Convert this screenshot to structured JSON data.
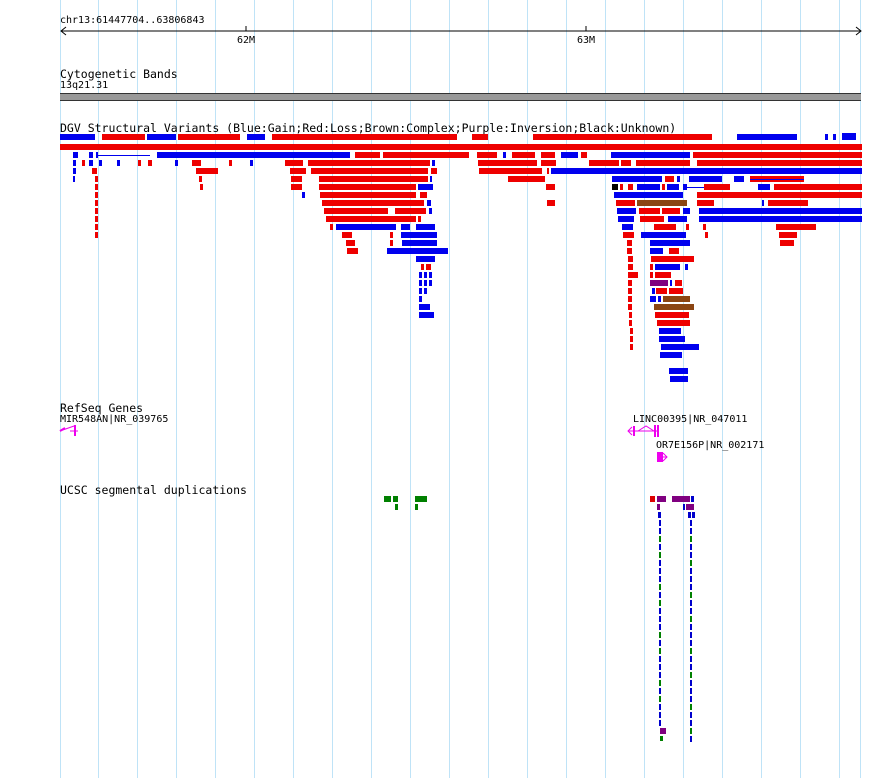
{
  "ruler": {
    "range_label": "chr13:61447704..63806843",
    "ticks": [
      {
        "label": "62M",
        "value": 62000000
      },
      {
        "label": "63M",
        "value": 63000000
      }
    ]
  },
  "tracks": {
    "cytoband": {
      "title": "Cytogenetic Bands",
      "band_label": "13q21.31"
    },
    "dgv": {
      "title": "DGV Structural Variants (Blue:Gain;Red:Loss;Brown:Complex;Purple:Inversion;Black:Unknown)"
    },
    "refseq": {
      "title": "RefSeq Genes",
      "genes": [
        {
          "label": "MIR548AN|NR_039765",
          "strand": "-"
        },
        {
          "label": "LINC00395|NR_047011",
          "strand": "-"
        },
        {
          "label": "OR7E156P|NR_002171",
          "strand": "+"
        }
      ]
    },
    "segdup": {
      "title": "UCSC segmental duplications"
    }
  },
  "colors": {
    "gain": "#0000ee",
    "loss": "#ee0000",
    "complex": "#8b4513",
    "inversion": "#800080",
    "unknown": "#000000",
    "gene": "#ee00ee",
    "segdup_green": "#008000",
    "segdup_red": "#dd0000",
    "segdup_purple": "#800080",
    "segdup_blue": "#0000cc",
    "grid": "#bfe3f7",
    "band": "#999999"
  }
}
